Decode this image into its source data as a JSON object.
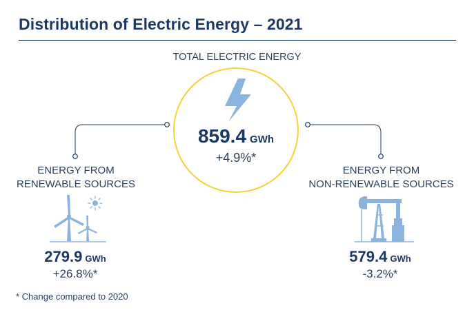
{
  "title": "Distribution of Electric Energy – 2021",
  "total": {
    "label": "TOTAL ELECTRIC ENERGY",
    "value": "859.4",
    "unit": "GWh",
    "change": "+4.9%*",
    "icon": "lightning-bolt-icon"
  },
  "renewable": {
    "label_line1": "ENERGY FROM",
    "label_line2": "RENEWABLE SOURCES",
    "value": "279.9",
    "unit": "GWh",
    "change": "+26.8%*",
    "icon": "wind-turbine-sun-icon"
  },
  "nonrenewable": {
    "label_line1": "ENERGY FROM",
    "label_line2": "NON-RENEWABLE SOURCES",
    "value": "579.4",
    "unit": "GWh",
    "change": "-3.2%*",
    "icon": "oil-pump-icon"
  },
  "footnote": "* Change compared to 2020",
  "colors": {
    "navy": "#1b3a63",
    "accent_yellow": "#f1d33a",
    "icon_blue": "#8ab4de"
  }
}
